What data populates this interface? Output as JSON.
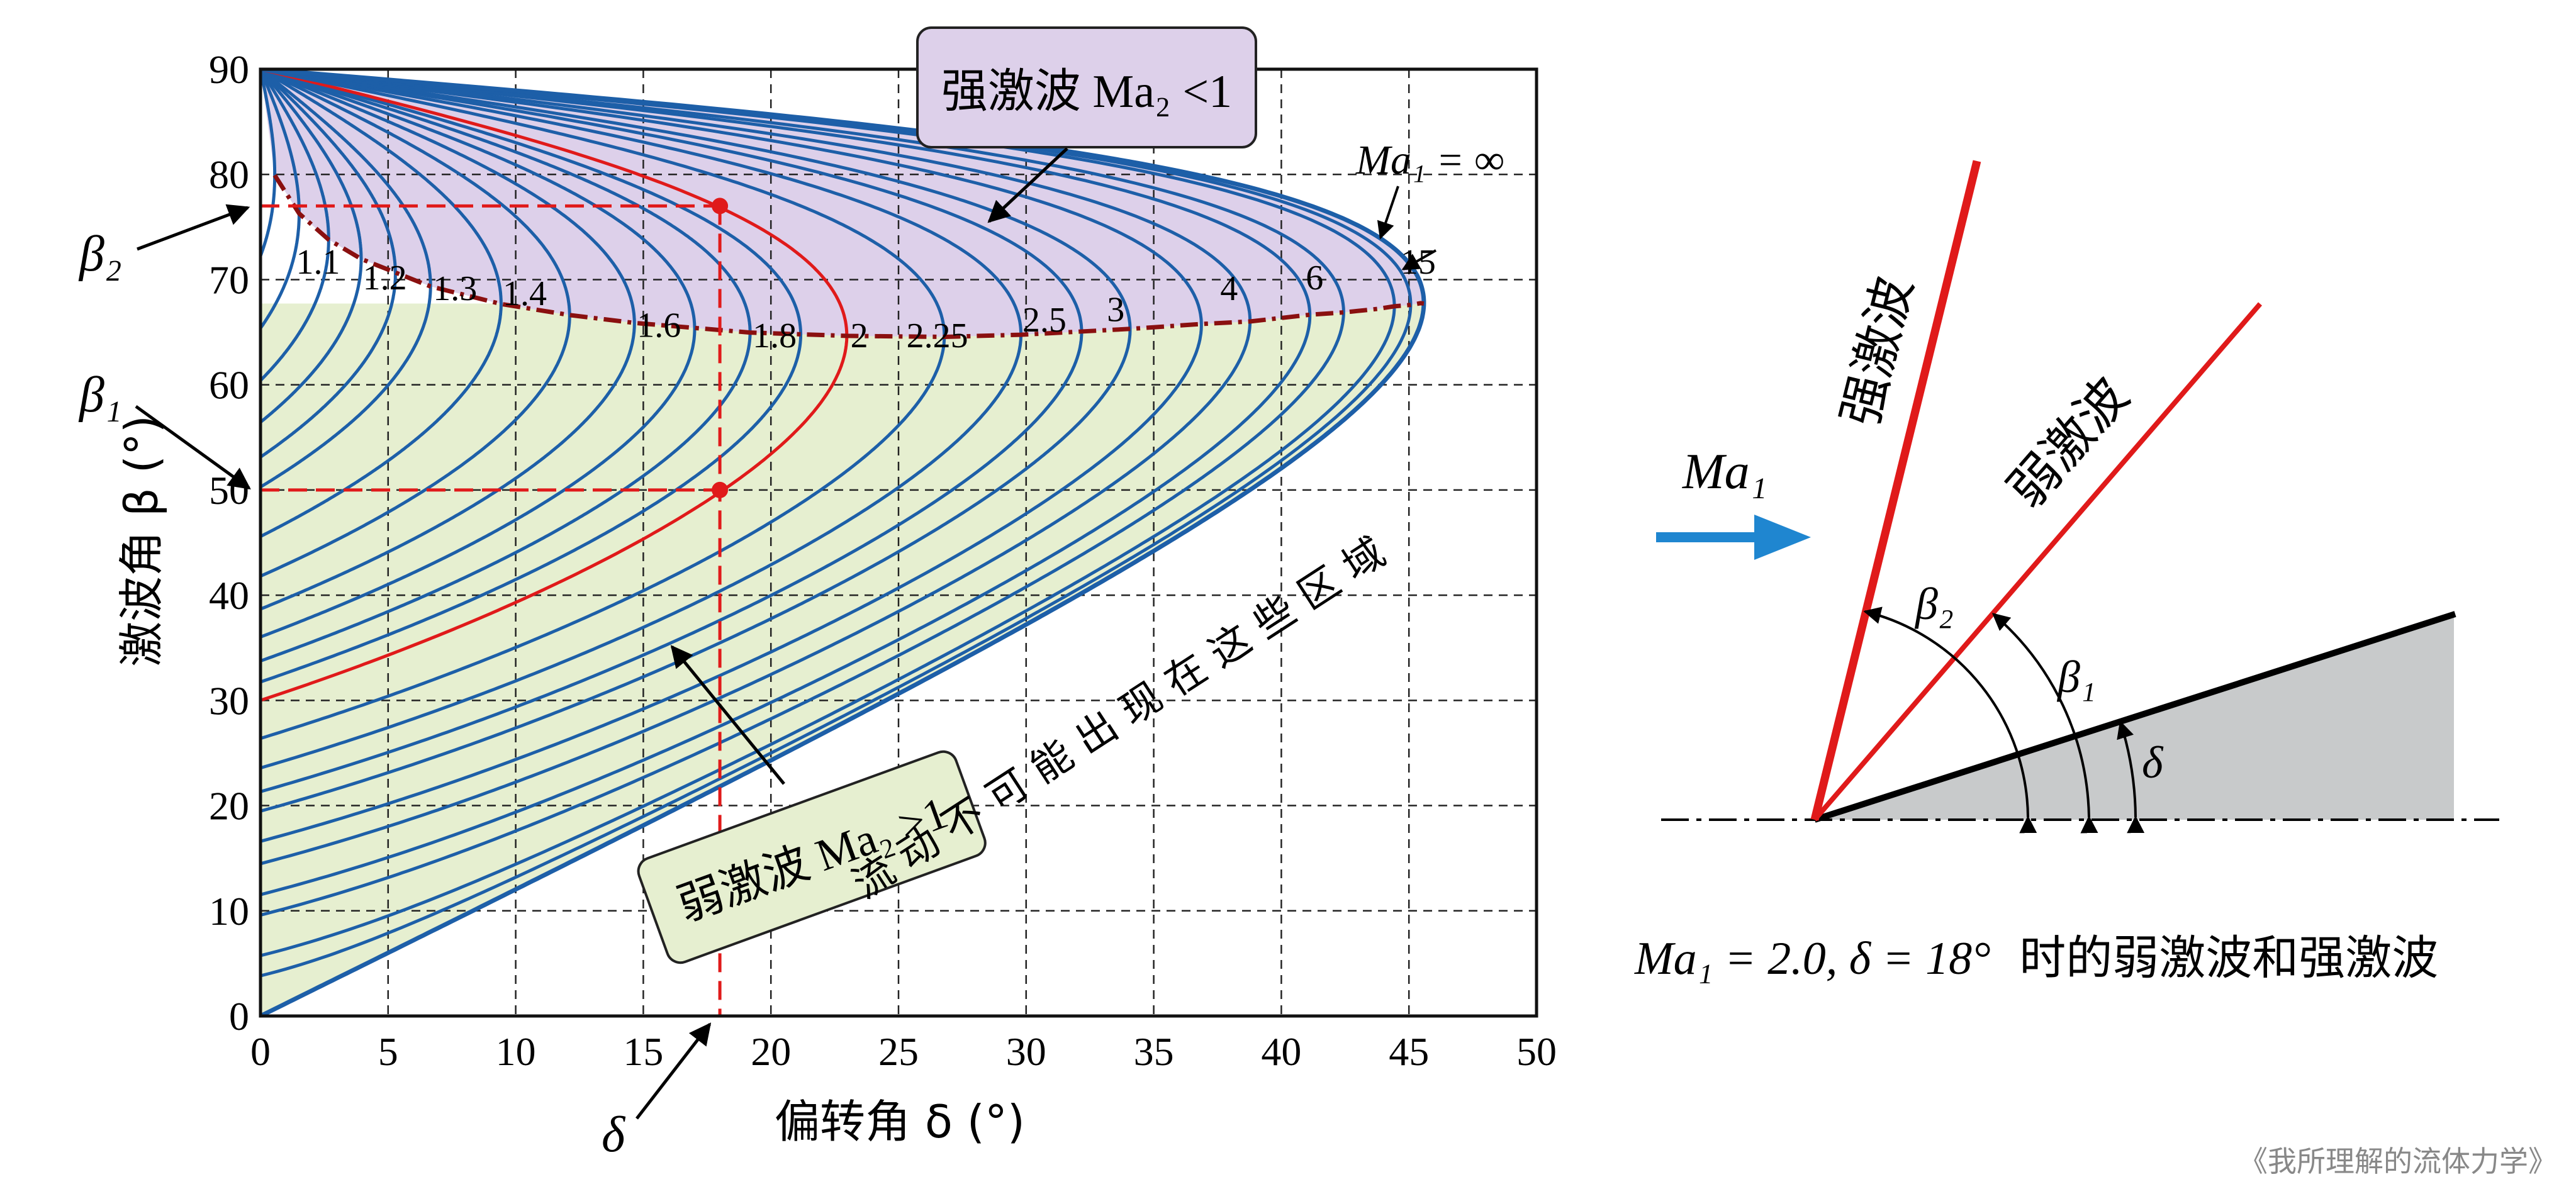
{
  "chart_data": {
    "type": "line",
    "xlabel": "偏转角 δ (°)",
    "ylabel": "激波角 β (°)",
    "xlim": [
      0,
      50
    ],
    "ylim": [
      0,
      90
    ],
    "x_ticks": [
      "0",
      "5",
      "10",
      "15",
      "20",
      "25",
      "30",
      "35",
      "40",
      "45",
      "50"
    ],
    "y_ticks": [
      "0",
      "10",
      "20",
      "30",
      "40",
      "50",
      "60",
      "70",
      "80",
      "90"
    ],
    "grid": true,
    "mach_labels": [
      "1.1",
      "1.2",
      "1.3",
      "1.4",
      "1.6",
      "1.8",
      "2",
      "2.25",
      "2.5",
      "3",
      "4",
      "6",
      "15"
    ],
    "infinity_label": "Ma₁ = ∞",
    "highlight_series": "2",
    "region_strong": "强激波 Ma₂ <1",
    "region_weak": "弱激波 Ma₂ >1",
    "impossible_text": "流 动 不 可 能 出 现 在 这 些 区 域",
    "example_point": {
      "delta": 18,
      "beta_weak": 50,
      "beta_strong": 77
    },
    "markers": {
      "beta2": "β₂",
      "beta1": "β₁",
      "delta": "δ"
    },
    "colors": {
      "curve": "#1d5fa8",
      "highlight": "#e01a1a",
      "strong_fill": "#ddd0ea",
      "weak_fill": "#e6efd0",
      "sonic_line": "#8a1010",
      "grid": "#222222"
    }
  },
  "diagram": {
    "mach_label": "Ma₁",
    "strong_label": "强激波",
    "weak_label": "弱激波",
    "beta2_label": "β₂",
    "beta1_label": "β₁",
    "delta_label": "δ",
    "caption_math": "Ma₁ = 2.0,  δ = 18°",
    "caption_text": "时的弱激波和强激波",
    "colors": {
      "arrow": "#1f86d0",
      "shock": "#e01a1a",
      "wedge": "#c8cacb"
    }
  },
  "credit": "《我所理解的流体力学》"
}
